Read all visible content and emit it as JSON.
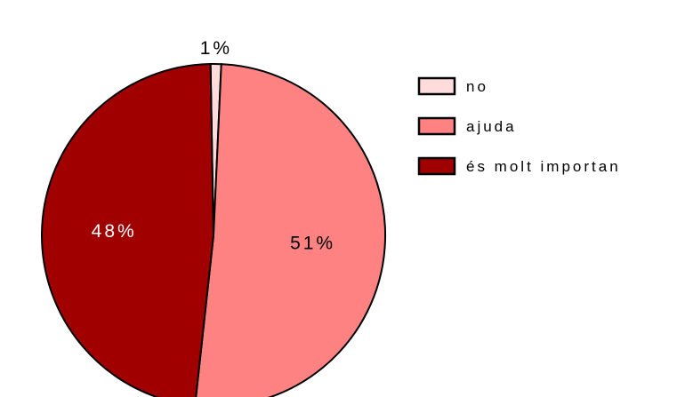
{
  "chart_data": {
    "type": "pie",
    "categories": [
      "no",
      "ajuda",
      "és molt importan"
    ],
    "values": [
      1,
      51,
      48
    ],
    "value_labels": [
      "1%",
      "51%",
      "48%"
    ],
    "colors": [
      "#FFDCDC",
      "#FF8282",
      "#A00000"
    ],
    "label_colors": [
      "#000000",
      "#000000",
      "#FFFFFF"
    ],
    "legend_position": "right"
  }
}
